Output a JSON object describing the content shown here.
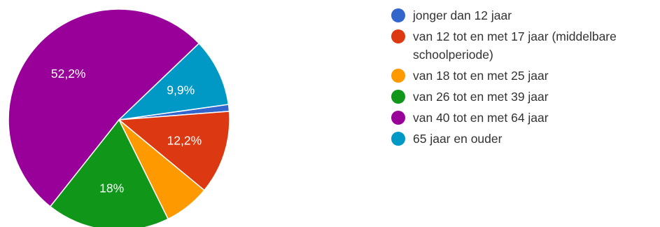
{
  "chart_data": {
    "type": "pie",
    "slices": [
      {
        "label": "jonger dan 12 jaar",
        "value": 1.0,
        "color": "#3366cc",
        "display_label": ""
      },
      {
        "label": "van 12 tot en met 17 jaar (middelbare schoolperiode)",
        "legend_lines": [
          "van 12 tot en met 17 jaar (middelbare",
          "schoolperiode)"
        ],
        "value": 12.2,
        "color": "#dc3912",
        "display_label": "12,2%"
      },
      {
        "label": "van 18 tot en met 25 jaar",
        "value": 6.7,
        "color": "#ff9900",
        "display_label": ""
      },
      {
        "label": "van 26 tot en met 39 jaar",
        "value": 18.0,
        "color": "#109618",
        "display_label": "18%"
      },
      {
        "label": "van 40 tot en met 64 jaar",
        "value": 52.2,
        "color": "#990099",
        "display_label": "52,2%"
      },
      {
        "label": "65 jaar en ouder",
        "value": 9.9,
        "color": "#0099c6",
        "display_label": "9,9%"
      }
    ],
    "legend_position": "right"
  }
}
